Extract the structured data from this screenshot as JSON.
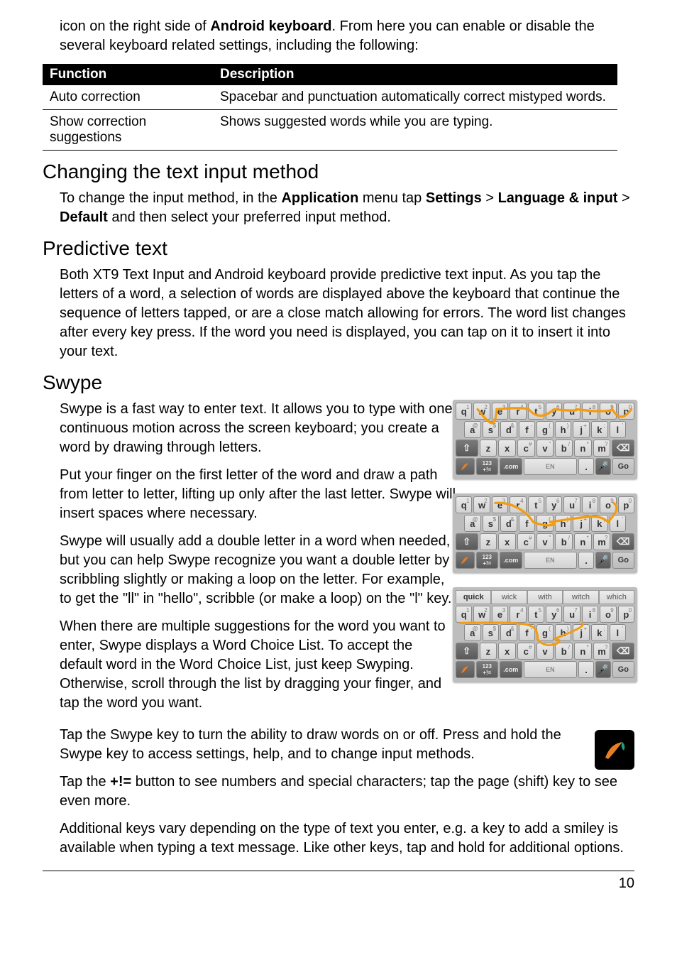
{
  "intro": {
    "text_a": "icon on the right side of ",
    "bold_a": "Android keyboard",
    "text_b": ". From here you can enable or disable the several keyboard related settings, including the following:"
  },
  "table": {
    "header_function": "Function",
    "header_description": "Description",
    "rows": [
      {
        "fn": "Auto correction",
        "desc": "Spacebar and punctuation automatically correct mistyped words."
      },
      {
        "fn": "Show correction suggestions",
        "desc": "Shows suggested words while you are typing."
      }
    ]
  },
  "section1": {
    "title": "Changing the text input method",
    "p_a": "To change the input method, in the ",
    "b1": "Application",
    "p_b": " menu tap ",
    "b2": "Settings",
    "p_c": " > ",
    "b3": "Language & input",
    "p_d": " > ",
    "b4": "Default",
    "p_e": " and then select your preferred input method."
  },
  "section2": {
    "title": "Predictive text",
    "p1": "Both XT9 Text Input and Android keyboard provide predictive text input. As you tap the letters of a word, a selection of words are displayed above the keyboard that continue the sequence of letters tapped, or are a close match allowing for errors. The word list changes after every key press. If the word you need is displayed, you can tap on it to insert it into your text."
  },
  "section3": {
    "title": "Swype",
    "p1": "Swype is a fast way to enter text. It allows you to type with one continuous motion across the screen keyboard; you create a word by drawing through letters.",
    "p2": "Put your finger on the first letter of the word and draw a path from letter to letter, lifting up only after the last letter. Swype will insert spaces where necessary.",
    "p3": "Swype will usually add a double letter in a word when needed, but you can help Swype recognize you want a double letter by scribbling slightly or making a loop on the letter. For example, to get the \"ll\" in \"hello\", scribble (or make a loop) on the \"l\" key.",
    "p4": "When there are multiple suggestions for the word you want to enter, Swype displays a Word Choice List. To accept the default word in the Word Choice List, just keep Swyping. Otherwise, scroll through the list by dragging your finger, and tap the word you want.",
    "p5": "Tap the Swype key to turn the ability to draw words on or off. Press and hold the Swype key to access settings, help, and to change input methods.",
    "p6_a": "Tap the ",
    "p6_bold": "+!=",
    "p6_b": " button to see numbers and special characters; tap the page (shift) key to see even more.",
    "p7": "Additional keys vary depending on the type of text you enter, e.g. a key to add a smiley is available when typing a text message. Like other keys, tap and hold for additional options."
  },
  "keyboard": {
    "row1": [
      {
        "l": "q",
        "s": "1"
      },
      {
        "l": "w",
        "s": "2"
      },
      {
        "l": "e",
        "s": "3"
      },
      {
        "l": "r",
        "s": "4"
      },
      {
        "l": "t",
        "s": "5"
      },
      {
        "l": "y",
        "s": "6"
      },
      {
        "l": "u",
        "s": "7"
      },
      {
        "l": "i",
        "s": "8"
      },
      {
        "l": "o",
        "s": "9"
      },
      {
        "l": "p",
        "s": "0"
      }
    ],
    "row2": [
      {
        "l": "a",
        "s": "@"
      },
      {
        "l": "s",
        "s": "$"
      },
      {
        "l": "d",
        "s": "&"
      },
      {
        "l": "f",
        "s": "-"
      },
      {
        "l": "g",
        "s": "("
      },
      {
        "l": "h",
        "s": ")"
      },
      {
        "l": "j",
        "s": "+"
      },
      {
        "l": "k",
        "s": ";"
      },
      {
        "l": "l",
        "s": "'"
      }
    ],
    "row3": [
      {
        "l": "z",
        "s": ""
      },
      {
        "l": "x",
        "s": ""
      },
      {
        "l": "c",
        "s": "#"
      },
      {
        "l": "v",
        "s": "\""
      },
      {
        "l": "b",
        "s": "/"
      },
      {
        "l": "n",
        "s": "*"
      },
      {
        "l": "m",
        "s": "?"
      }
    ],
    "row4": {
      "sym": "123\n+!=",
      "com": ".com",
      "space": "EN",
      "dot": ".",
      "go": "Go"
    },
    "suggestions": [
      "quick",
      "wick",
      "with",
      "witch",
      "which"
    ],
    "colors": {
      "path": "#f39c12",
      "bg": "#bdbdbd"
    }
  },
  "page_number": "10"
}
